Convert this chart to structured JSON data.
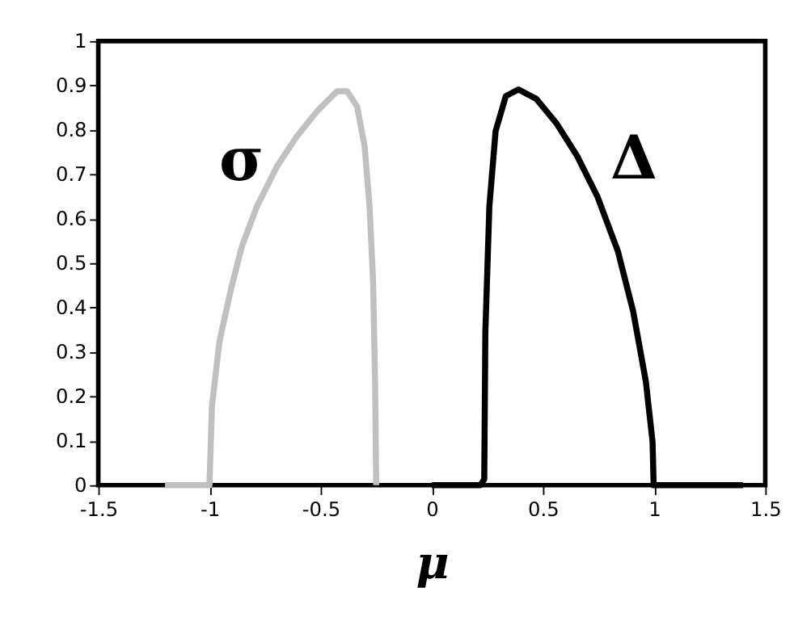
{
  "chart_data": {
    "type": "line",
    "xlabel": "μ",
    "xlim": [
      -1.5,
      1.5
    ],
    "xticks": [
      -1.5,
      -1,
      -0.5,
      0,
      0.5,
      1,
      1.5
    ],
    "ylim": [
      0,
      1
    ],
    "yticks": [
      0,
      0.1,
      0.2,
      0.3,
      0.4,
      0.5,
      0.6,
      0.7,
      0.8,
      0.9,
      1
    ],
    "grid": false,
    "legend": false,
    "marker": "none",
    "line_style": "solid",
    "series": [
      {
        "name": "σ",
        "color": "#c0c0c0",
        "x": [
          -1.2,
          -1.0,
          -0.989,
          -0.955,
          -0.903,
          -0.854,
          -0.786,
          -0.696,
          -0.606,
          -0.516,
          -0.426,
          -0.381,
          -0.336,
          -0.302,
          -0.28,
          -0.264,
          -0.255,
          -0.25
        ],
        "values": [
          0,
          0,
          0.177,
          0.324,
          0.442,
          0.538,
          0.628,
          0.718,
          0.786,
          0.842,
          0.887,
          0.887,
          0.853,
          0.763,
          0.628,
          0.459,
          0.233,
          0
        ]
      },
      {
        "name": "Δ",
        "color": "#000000",
        "x": [
          0,
          0.218,
          0.236,
          0.241,
          0.259,
          0.287,
          0.333,
          0.39,
          0.47,
          0.562,
          0.654,
          0.745,
          0.837,
          0.906,
          0.963,
          0.993,
          0.998,
          1.4
        ],
        "values": [
          0,
          0,
          0.013,
          0.346,
          0.628,
          0.797,
          0.876,
          0.891,
          0.87,
          0.814,
          0.741,
          0.65,
          0.527,
          0.391,
          0.233,
          0.098,
          0,
          0
        ]
      }
    ]
  }
}
